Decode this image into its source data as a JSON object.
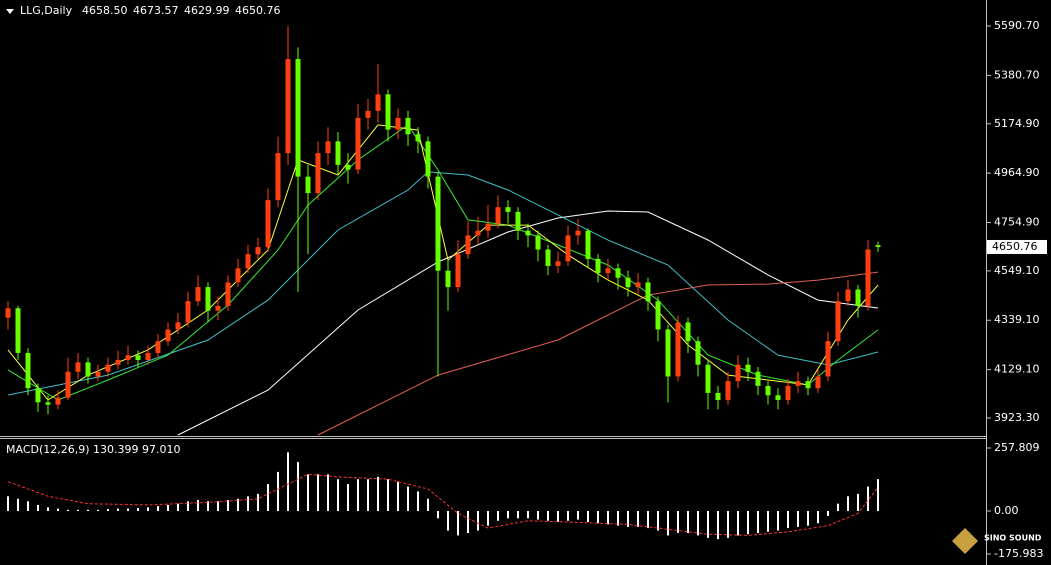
{
  "chart_data": [
    {
      "type": "candlestick",
      "title": "LLG,Daily",
      "ohlc_labels": [
        "4658.50",
        "4673.57",
        "4629.99",
        "4650.76"
      ],
      "up_color": "#ff4010",
      "down_color": "#66ff00",
      "candles": {
        "open": [
          4350,
          4390,
          4200,
          4050,
          3990,
          3980,
          4010,
          4120,
          4160,
          4100,
          4120,
          4150,
          4170,
          4190,
          4170,
          4200,
          4250,
          4300,
          4330,
          4420,
          4480,
          4380,
          4400,
          4500,
          4560,
          4620,
          4650,
          4850,
          5050,
          5450,
          4950,
          4880,
          5050,
          5100,
          5000,
          4980,
          5200,
          5230,
          5300,
          5150,
          5200,
          5130,
          5100,
          4950,
          4550,
          4480,
          4620,
          4700,
          4720,
          4750,
          4820,
          4800,
          4720,
          4700,
          4640,
          4570,
          4590,
          4700,
          4720,
          4600,
          4540,
          4560,
          4520,
          4480,
          4500,
          4420,
          4300,
          4100,
          4330,
          4250,
          4150,
          4030,
          4000,
          4080,
          4150,
          4120,
          4060,
          4020,
          4000,
          4060,
          4080,
          4050,
          4100,
          4250,
          4420,
          4470,
          4400,
          4658.5
        ],
        "high": [
          4420,
          4400,
          4220,
          4070,
          4020,
          4040,
          4180,
          4200,
          4180,
          4150,
          4180,
          4210,
          4230,
          4210,
          4230,
          4280,
          4330,
          4370,
          4460,
          4530,
          4500,
          4440,
          4530,
          4600,
          4660,
          4690,
          4900,
          5120,
          5590,
          5500,
          5000,
          5100,
          5160,
          5140,
          5050,
          5260,
          5280,
          5430,
          5320,
          5240,
          5230,
          5160,
          5120,
          4970,
          4600,
          4680,
          4760,
          4780,
          4830,
          4870,
          4850,
          4820,
          4750,
          4720,
          4660,
          4630,
          4740,
          4770,
          4730,
          4620,
          4600,
          4580,
          4550,
          4540,
          4520,
          4440,
          4320,
          4360,
          4350,
          4270,
          4170,
          4060,
          4120,
          4190,
          4180,
          4140,
          4080,
          4050,
          4090,
          4120,
          4100,
          4130,
          4290,
          4460,
          4510,
          4490,
          4680,
          4673.57
        ],
        "low": [
          4300,
          4170,
          4020,
          3950,
          3940,
          3960,
          4000,
          4090,
          4070,
          4080,
          4100,
          4130,
          4150,
          4140,
          4150,
          4180,
          4230,
          4280,
          4310,
          4400,
          4330,
          4340,
          4380,
          4480,
          4540,
          4600,
          4630,
          4820,
          5000,
          4460,
          4620,
          4850,
          5000,
          4960,
          4920,
          4960,
          5150,
          5180,
          5100,
          5110,
          5080,
          5050,
          4900,
          4100,
          4380,
          4460,
          4600,
          4660,
          4690,
          4730,
          4750,
          4680,
          4650,
          4590,
          4530,
          4540,
          4570,
          4660,
          4560,
          4500,
          4510,
          4470,
          4440,
          4450,
          4380,
          4250,
          3990,
          4080,
          4200,
          4100,
          3960,
          3960,
          3980,
          4050,
          4080,
          4020,
          3980,
          3960,
          3980,
          4030,
          4020,
          4030,
          4080,
          4230,
          4400,
          4350,
          4380,
          4629.99
        ],
        "close": [
          4390,
          4200,
          4050,
          3990,
          3980,
          4010,
          4120,
          4160,
          4100,
          4120,
          4150,
          4170,
          4190,
          4170,
          4200,
          4250,
          4300,
          4330,
          4420,
          4480,
          4380,
          4400,
          4500,
          4560,
          4620,
          4650,
          4850,
          5050,
          5450,
          4950,
          4880,
          5050,
          5100,
          5000,
          4980,
          5200,
          5230,
          5300,
          5150,
          5200,
          5130,
          5100,
          4950,
          4550,
          4480,
          4620,
          4700,
          4720,
          4750,
          4820,
          4800,
          4720,
          4700,
          4640,
          4570,
          4590,
          4700,
          4720,
          4600,
          4540,
          4560,
          4520,
          4480,
          4500,
          4420,
          4300,
          4100,
          4330,
          4250,
          4150,
          4030,
          4000,
          4080,
          4150,
          4120,
          4060,
          4020,
          4000,
          4060,
          4080,
          4050,
          4100,
          4250,
          4420,
          4470,
          4400,
          4640,
          4650.76
        ]
      },
      "lines": [
        {
          "color": "#ffffff",
          "x": [
            17,
            26,
            35,
            43,
            50,
            55,
            60,
            64,
            70,
            76,
            81,
            87
          ],
          "values": [
            3851,
            4042,
            4382.7,
            4586.8,
            4714.5,
            4774,
            4803.8,
            4799.5,
            4680.4,
            4532,
            4425,
            4391
          ]
        },
        {
          "color": "#e06050",
          "x": [
            31,
            43,
            55,
            64,
            70,
            76,
            81,
            87
          ],
          "values": [
            3851,
            4106,
            4255,
            4446,
            4489,
            4493,
            4510,
            4544
          ]
        },
        {
          "color": "#40c0c8",
          "x": [
            0,
            10,
            20,
            26,
            33,
            40,
            42,
            46,
            50,
            55,
            60,
            66,
            72,
            77,
            82,
            87
          ],
          "values": [
            4021,
            4106,
            4255,
            4425,
            4723,
            4893,
            4970,
            4957,
            4893,
            4787,
            4680,
            4574,
            4340,
            4191,
            4149,
            4204
          ]
        },
        {
          "color": "#33ee33",
          "x": [
            0,
            5,
            10,
            16,
            22,
            27,
            30,
            35,
            40,
            43,
            46,
            50,
            55,
            60,
            65,
            70,
            75,
            80,
            83,
            87
          ],
          "values": [
            4128,
            4000,
            4085,
            4191,
            4404,
            4638,
            4829,
            5021,
            5170,
            4978,
            4766,
            4744,
            4659,
            4574,
            4425,
            4191,
            4106,
            4064,
            4170,
            4298
          ]
        },
        {
          "color": "#ffff40",
          "x": [
            0,
            4,
            8,
            14,
            20,
            26,
            29,
            33,
            37,
            41,
            44,
            48,
            52,
            56,
            60,
            64,
            68,
            72,
            76,
            80,
            84,
            87
          ],
          "values": [
            4213,
            4000,
            4106,
            4213,
            4383,
            4638,
            5021,
            4957,
            5170,
            5148,
            4595,
            4744,
            4744,
            4617,
            4510,
            4425,
            4234,
            4106,
            4085,
            4064,
            4340,
            4489
          ]
        }
      ],
      "ylim": [
        3851.0,
        5701.3
      ],
      "yticks": [
        {
          "value": 5590.7,
          "label": "5590.70"
        },
        {
          "value": 5380.7,
          "label": "5380.70"
        },
        {
          "value": 5174.9,
          "label": "5174.90"
        },
        {
          "value": 4964.9,
          "label": "4964.90"
        },
        {
          "value": 4754.9,
          "label": "4754.90"
        },
        {
          "value": 4549.1,
          "label": "4549.10"
        },
        {
          "value": 4339.1,
          "label": "4339.10"
        },
        {
          "value": 4129.1,
          "label": "4129.10"
        },
        {
          "value": 3923.3,
          "label": "3923.30"
        }
      ]
    },
    {
      "type": "macd",
      "title": "MACD(12,26,9) 130.399 97.010",
      "color": "#ffffff",
      "values": [
        60,
        50,
        40,
        25,
        15,
        10,
        5,
        5,
        5,
        5,
        8,
        10,
        10,
        12,
        15,
        20,
        25,
        30,
        40,
        45,
        40,
        40,
        45,
        50,
        60,
        70,
        110,
        160,
        240,
        200,
        150,
        150,
        150,
        130,
        110,
        130,
        130,
        140,
        130,
        120,
        100,
        80,
        50,
        -30,
        -80,
        -100,
        -90,
        -80,
        -60,
        -40,
        -30,
        -30,
        -30,
        -35,
        -40,
        -45,
        -40,
        -35,
        -45,
        -50,
        -55,
        -60,
        -65,
        -65,
        -70,
        -80,
        -100,
        -90,
        -90,
        -100,
        -110,
        -115,
        -110,
        -100,
        -95,
        -90,
        -85,
        -80,
        -70,
        -65,
        -60,
        -50,
        -20,
        30,
        60,
        70,
        100,
        130.399
      ],
      "signal": {
        "color": "#ff3030",
        "x": [
          0,
          4,
          8,
          14,
          20,
          25,
          28,
          30,
          33,
          38,
          42,
          45,
          48,
          52,
          56,
          62,
          66,
          70,
          74,
          78,
          82,
          85,
          87
        ],
        "values": [
          120,
          60,
          30,
          25,
          35,
          50,
          110,
          150,
          140,
          130,
          90,
          -10,
          -70,
          -40,
          -45,
          -55,
          -75,
          -95,
          -100,
          -85,
          -60,
          -10,
          97.01
        ]
      },
      "ylim": [
        -221.0,
        298.7
      ],
      "yticks": [
        257.809,
        {
          "value": 0,
          "label": "0.00"
        },
        -175.983
      ]
    }
  ],
  "logo": {
    "text": "SINO SOUND"
  }
}
